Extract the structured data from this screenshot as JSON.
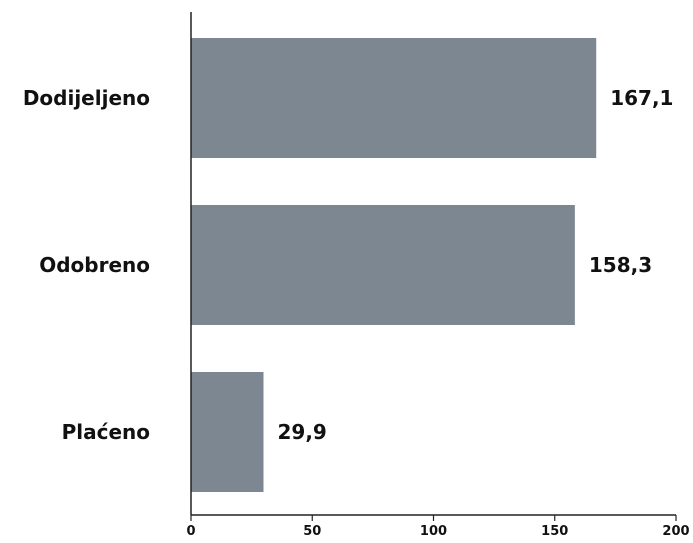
{
  "chart_data": {
    "type": "bar",
    "orientation": "horizontal",
    "categories": [
      "Dodijeljeno",
      "Odobreno",
      "Plaćeno"
    ],
    "values": [
      167.1,
      158.3,
      29.9
    ],
    "value_labels": [
      "167,1",
      "158,3",
      "29,9"
    ],
    "xlim": [
      0,
      200
    ],
    "xticks": [
      0,
      50,
      100,
      150,
      200
    ],
    "xtick_labels": [
      "0",
      "50",
      "100",
      "150",
      "200"
    ],
    "bar_color": "#7d8792",
    "grid": false,
    "legend": "none"
  }
}
